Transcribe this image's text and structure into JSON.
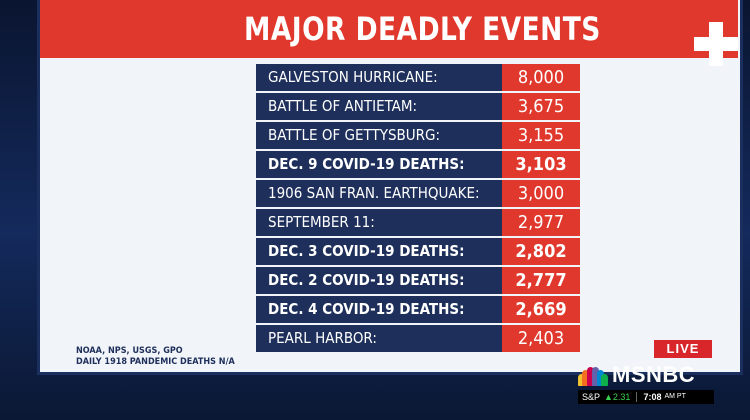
{
  "title": "MAJOR DEADLY EVENTS",
  "rows": [
    {
      "label": "GALVESTON HURRICANE:",
      "value": "8,000",
      "bold": false
    },
    {
      "label": "BATTLE OF ANTIETAM:",
      "value": "3,675",
      "bold": false
    },
    {
      "label": "BATTLE OF GETTYSBURG:",
      "value": "3,155",
      "bold": false
    },
    {
      "label": "DEC. 9 COVID-19 DEATHS:",
      "value": "3,103",
      "bold": true
    },
    {
      "label": "1906 SAN FRAN. EARTHQUAKE:",
      "value": "3,000",
      "bold": false
    },
    {
      "label": "SEPTEMBER 11:",
      "value": "2,977",
      "bold": false
    },
    {
      "label": "DEC. 3 COVID-19 DEATHS:",
      "value": "2,802",
      "bold": true
    },
    {
      "label": "DEC. 2 COVID-19 DEATHS:",
      "value": "2,777",
      "bold": true
    },
    {
      "label": "DEC. 4 COVID-19 DEATHS:",
      "value": "2,669",
      "bold": true
    },
    {
      "label": "PEARL HARBOR:",
      "value": "2,403",
      "bold": false
    }
  ],
  "source": {
    "line1": "NOAA, NPS, USGS, GPO",
    "line2": "DAILY 1918 PANDEMIC DEATHS N/A"
  },
  "live": "LIVE",
  "network": "MSNBC",
  "ticker": {
    "index": "S&P",
    "change": "▲2.31",
    "time": "7:08",
    "ampm": "AM PT"
  },
  "colors": {
    "accent_red": "#e0382c",
    "navy": "#1d2f5a",
    "screen_bg": "#f1f4f9"
  }
}
